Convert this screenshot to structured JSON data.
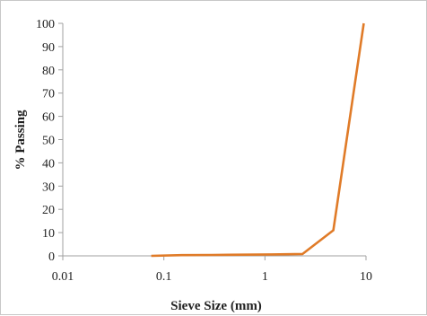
{
  "chart_data": {
    "type": "line",
    "title": "",
    "xlabel": "Sieve Size (mm)",
    "ylabel": "% Passing",
    "xscale": "log",
    "xlim": [
      0.01,
      10
    ],
    "ylim": [
      0,
      100
    ],
    "x_ticks": [
      "0.01",
      "0.1",
      "1",
      "10"
    ],
    "y_ticks": [
      "0",
      "10",
      "20",
      "30",
      "40",
      "50",
      "60",
      "70",
      "80",
      "90",
      "100"
    ],
    "grid": false,
    "legend": "none",
    "series": [
      {
        "color": "#e07b28",
        "x": [
          0.075,
          0.15,
          0.3,
          0.6,
          1.18,
          2.36,
          4.75,
          9.5
        ],
        "y": [
          0,
          0.3,
          0.4,
          0.5,
          0.6,
          0.8,
          11,
          100
        ]
      }
    ]
  }
}
